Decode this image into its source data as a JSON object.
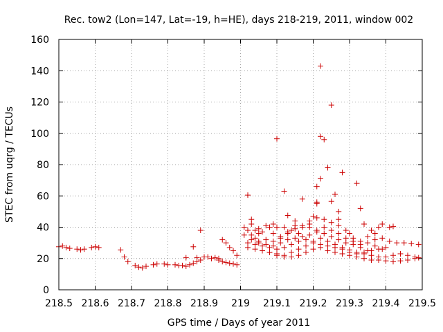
{
  "chart_data": {
    "type": "scatter",
    "title": "Rec. tow2 (Lon=147, Lat=-19, h=HE), days 218-219, 2011, window 002",
    "xlabel": "GPS time / Days of year 2011",
    "ylabel": "STEC from uqrg / TECUs",
    "xlim": [
      218.5,
      219.5
    ],
    "ylim": [
      0,
      160
    ],
    "xticks": [
      218.5,
      218.6,
      218.7,
      218.8,
      218.9,
      219.0,
      219.1,
      219.2,
      219.3,
      219.4,
      219.5
    ],
    "xtick_labels": [
      "218.5",
      "218.6",
      "218.7",
      "218.8",
      "218.9",
      "219",
      "219.1",
      "219.2",
      "219.3",
      "219.4",
      "219.5"
    ],
    "yticks": [
      0,
      20,
      40,
      60,
      80,
      100,
      120,
      140,
      160
    ],
    "ytick_labels": [
      "0",
      "20",
      "40",
      "60",
      "80",
      "100",
      "120",
      "140",
      "160"
    ],
    "grid": true,
    "marker": "+",
    "color": "#cc0000",
    "series": [
      {
        "name": "STEC",
        "points": [
          [
            218.5,
            27.5
          ],
          [
            218.51,
            28
          ],
          [
            218.52,
            27
          ],
          [
            218.53,
            26.5
          ],
          [
            218.55,
            26
          ],
          [
            218.56,
            25.5
          ],
          [
            218.57,
            26
          ],
          [
            218.59,
            27
          ],
          [
            218.6,
            27.5
          ],
          [
            218.61,
            27
          ],
          [
            218.67,
            25.5
          ],
          [
            218.68,
            21
          ],
          [
            218.69,
            18
          ],
          [
            218.71,
            15.5
          ],
          [
            218.72,
            14.5
          ],
          [
            218.73,
            14
          ],
          [
            218.74,
            15
          ],
          [
            218.76,
            16
          ],
          [
            218.77,
            16.5
          ],
          [
            218.79,
            16.5
          ],
          [
            218.8,
            16
          ],
          [
            218.82,
            16
          ],
          [
            218.83,
            15.5
          ],
          [
            218.84,
            15.5
          ],
          [
            218.85,
            15
          ],
          [
            218.86,
            16
          ],
          [
            218.87,
            17
          ],
          [
            218.88,
            18
          ],
          [
            218.89,
            19
          ],
          [
            218.85,
            20.5
          ],
          [
            218.87,
            27.5
          ],
          [
            218.88,
            20.5
          ],
          [
            218.89,
            38
          ],
          [
            218.9,
            21
          ],
          [
            218.91,
            21
          ],
          [
            218.92,
            20
          ],
          [
            218.93,
            20.5
          ],
          [
            218.94,
            20
          ],
          [
            218.95,
            32
          ],
          [
            218.96,
            30
          ],
          [
            218.97,
            27
          ],
          [
            218.98,
            25
          ],
          [
            218.99,
            22
          ],
          [
            218.94,
            19
          ],
          [
            218.95,
            18
          ],
          [
            218.96,
            17.5
          ],
          [
            218.97,
            17
          ],
          [
            218.98,
            16.5
          ],
          [
            218.99,
            16
          ],
          [
            219.03,
            42
          ],
          [
            219.04,
            38
          ],
          [
            219.05,
            36
          ],
          [
            219.06,
            37
          ],
          [
            219.08,
            40
          ],
          [
            219.09,
            42
          ],
          [
            219.1,
            40
          ],
          [
            219.12,
            40
          ],
          [
            219.14,
            38
          ],
          [
            219.16,
            36
          ],
          [
            219.02,
            60.5
          ],
          [
            219.1,
            96.5
          ],
          [
            219.12,
            63
          ],
          [
            219.13,
            47.5
          ],
          [
            219.15,
            41
          ],
          [
            219.17,
            58
          ],
          [
            219.19,
            44
          ],
          [
            219.2,
            47
          ],
          [
            219.21,
            66
          ],
          [
            219.21,
            56
          ],
          [
            219.21,
            55
          ],
          [
            219.22,
            143
          ],
          [
            219.22,
            98
          ],
          [
            219.23,
            96
          ],
          [
            219.24,
            78
          ],
          [
            219.25,
            118
          ],
          [
            219.22,
            71
          ],
          [
            219.25,
            56.5
          ],
          [
            219.26,
            61
          ],
          [
            219.27,
            50
          ],
          [
            219.27,
            45
          ],
          [
            219.28,
            75
          ],
          [
            219.3,
            36
          ],
          [
            219.32,
            68
          ],
          [
            219.33,
            52
          ],
          [
            219.34,
            42
          ],
          [
            219.36,
            38
          ],
          [
            219.37,
            36
          ],
          [
            219.38,
            40
          ],
          [
            219.39,
            42
          ],
          [
            219.41,
            40
          ],
          [
            219.42,
            40.5
          ],
          [
            219.02,
            38
          ],
          [
            219.03,
            35
          ],
          [
            219.04,
            33
          ],
          [
            219.05,
            31
          ],
          [
            219.07,
            29
          ],
          [
            219.09,
            28
          ],
          [
            219.11,
            30
          ],
          [
            219.13,
            32
          ],
          [
            219.15,
            33
          ],
          [
            219.17,
            34
          ],
          [
            219.19,
            35
          ],
          [
            219.21,
            37
          ],
          [
            219.23,
            36
          ],
          [
            219.25,
            34
          ],
          [
            219.27,
            32
          ],
          [
            219.29,
            30
          ],
          [
            219.31,
            29
          ],
          [
            219.33,
            29
          ],
          [
            219.35,
            30
          ],
          [
            219.37,
            32
          ],
          [
            219.39,
            33
          ],
          [
            219.41,
            31
          ],
          [
            219.43,
            30
          ],
          [
            219.45,
            30
          ],
          [
            219.47,
            29.5
          ],
          [
            219.49,
            29
          ],
          [
            219.02,
            30
          ],
          [
            219.04,
            29
          ],
          [
            219.06,
            28
          ],
          [
            219.08,
            27
          ],
          [
            219.1,
            26
          ],
          [
            219.12,
            27
          ],
          [
            219.14,
            29
          ],
          [
            219.16,
            31
          ],
          [
            219.18,
            32
          ],
          [
            219.2,
            30
          ],
          [
            219.22,
            29
          ],
          [
            219.24,
            28
          ],
          [
            219.26,
            27
          ],
          [
            219.28,
            26
          ],
          [
            219.3,
            25.5
          ],
          [
            219.32,
            24
          ],
          [
            219.34,
            23
          ],
          [
            219.36,
            22
          ],
          [
            219.38,
            21
          ],
          [
            219.4,
            21
          ],
          [
            219.42,
            22
          ],
          [
            219.44,
            23
          ],
          [
            219.46,
            22
          ],
          [
            219.48,
            21
          ],
          [
            219.02,
            27
          ],
          [
            219.04,
            26
          ],
          [
            219.06,
            25
          ],
          [
            219.08,
            24
          ],
          [
            219.1,
            23
          ],
          [
            219.12,
            22
          ],
          [
            219.14,
            21
          ],
          [
            219.16,
            22
          ],
          [
            219.18,
            24
          ],
          [
            219.2,
            26
          ],
          [
            219.22,
            27
          ],
          [
            219.24,
            25
          ],
          [
            219.26,
            24
          ],
          [
            219.28,
            23
          ],
          [
            219.3,
            22
          ],
          [
            219.32,
            21
          ],
          [
            219.34,
            20
          ],
          [
            219.36,
            19
          ],
          [
            219.38,
            19
          ],
          [
            219.4,
            18.5
          ],
          [
            219.42,
            18
          ],
          [
            219.44,
            18.5
          ],
          [
            219.46,
            19
          ],
          [
            219.48,
            20
          ],
          [
            219.49,
            20.5
          ],
          [
            219.01,
            40
          ],
          [
            219.03,
            45
          ],
          [
            219.05,
            39
          ],
          [
            219.07,
            41
          ],
          [
            219.09,
            36
          ],
          [
            219.11,
            34
          ],
          [
            219.13,
            37
          ],
          [
            219.15,
            44
          ],
          [
            219.17,
            40
          ],
          [
            219.19,
            42
          ],
          [
            219.21,
            46
          ],
          [
            219.23,
            45
          ],
          [
            219.25,
            43
          ],
          [
            219.27,
            41
          ],
          [
            219.29,
            38
          ],
          [
            219.31,
            33
          ],
          [
            219.33,
            31
          ],
          [
            219.35,
            34
          ],
          [
            219.37,
            28
          ],
          [
            219.39,
            26
          ],
          [
            219.01,
            35
          ],
          [
            219.03,
            32
          ],
          [
            219.05,
            30
          ],
          [
            219.07,
            32
          ],
          [
            219.09,
            31
          ],
          [
            219.11,
            33
          ],
          [
            219.13,
            36
          ],
          [
            219.15,
            39
          ],
          [
            219.17,
            41
          ],
          [
            219.19,
            40
          ],
          [
            219.21,
            38
          ],
          [
            219.23,
            40
          ],
          [
            219.25,
            38
          ],
          [
            219.27,
            36
          ],
          [
            219.29,
            33
          ],
          [
            219.31,
            31
          ],
          [
            219.33,
            27
          ],
          [
            219.35,
            25
          ],
          [
            219.06,
            25
          ],
          [
            219.08,
            24
          ],
          [
            219.1,
            22
          ],
          [
            219.12,
            21
          ],
          [
            219.14,
            24
          ],
          [
            219.16,
            26
          ],
          [
            219.18,
            28
          ],
          [
            219.2,
            31
          ],
          [
            219.22,
            33
          ],
          [
            219.24,
            31
          ],
          [
            219.26,
            29
          ],
          [
            219.28,
            27
          ],
          [
            219.3,
            24
          ],
          [
            219.32,
            23
          ],
          [
            219.34,
            24
          ],
          [
            219.36,
            25
          ],
          [
            219.38,
            26
          ],
          [
            219.4,
            27
          ]
        ]
      }
    ]
  }
}
